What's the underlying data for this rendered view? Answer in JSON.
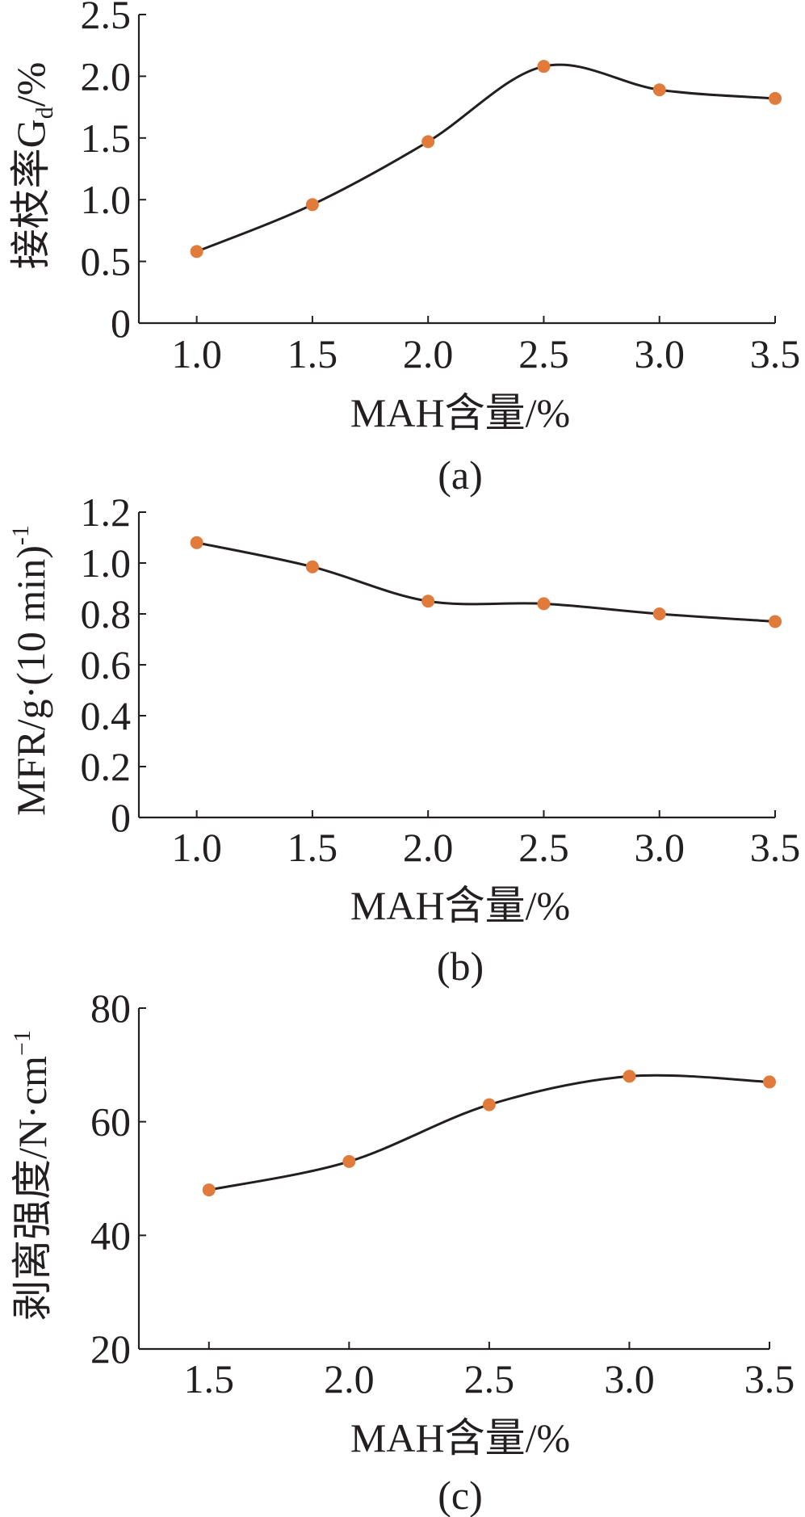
{
  "chart_data": [
    {
      "type": "line",
      "id": "a",
      "caption": "(a)",
      "x": [
        1.0,
        1.5,
        2.0,
        2.5,
        3.0,
        3.5
      ],
      "series": [
        {
          "name": "Gd",
          "values": [
            0.58,
            0.96,
            1.47,
            2.08,
            1.89,
            1.82
          ]
        }
      ],
      "xlim": [
        0.75,
        3.5
      ],
      "ylim": [
        0,
        2.5
      ],
      "xticks": [
        "1.0",
        "1.5",
        "2.0",
        "2.5",
        "3.0",
        "3.5"
      ],
      "yticks": [
        "0",
        "0.5",
        "1.0",
        "1.5",
        "2.0",
        "2.5"
      ],
      "xlabel": "MAH含量/%",
      "ylabel": {
        "main": "接枝率G",
        "sub": "d",
        "tail": "/%"
      },
      "marker_color": "#e07b3c",
      "line_color": "#231f20"
    },
    {
      "type": "line",
      "id": "b",
      "caption": "(b)",
      "x": [
        1.0,
        1.5,
        2.0,
        2.5,
        3.0,
        3.5
      ],
      "series": [
        {
          "name": "MFR",
          "values": [
            1.08,
            0.985,
            0.85,
            0.84,
            0.8,
            0.77
          ]
        }
      ],
      "xlim": [
        0.75,
        3.5
      ],
      "ylim": [
        0,
        1.2
      ],
      "xticks": [
        "1.0",
        "1.5",
        "2.0",
        "2.5",
        "3.0",
        "3.5"
      ],
      "yticks": [
        "0",
        "0.2",
        "0.4",
        "0.6",
        "0.8",
        "1.0",
        "1.2"
      ],
      "xlabel": "MAH含量/%",
      "ylabel": {
        "main": "MFR/g·(10 min)",
        "sup": "-1"
      },
      "marker_color": "#e07b3c",
      "line_color": "#231f20"
    },
    {
      "type": "line",
      "id": "c",
      "caption": "(c)",
      "x": [
        1.5,
        2.0,
        2.5,
        3.0,
        3.5
      ],
      "series": [
        {
          "name": "剥离强度",
          "values": [
            48,
            53,
            63,
            68,
            67
          ]
        }
      ],
      "xlim": [
        1.25,
        3.5
      ],
      "ylim": [
        20,
        80
      ],
      "xticks": [
        "1.5",
        "2.0",
        "2.5",
        "3.0",
        "3.5"
      ],
      "yticks": [
        "20",
        "40",
        "60",
        "80"
      ],
      "xlabel": "MAH含量/%",
      "ylabel": {
        "main": "剥离强度/N·cm",
        "sup": "−1"
      },
      "marker_color": "#e07b3c",
      "line_color": "#231f20"
    }
  ]
}
